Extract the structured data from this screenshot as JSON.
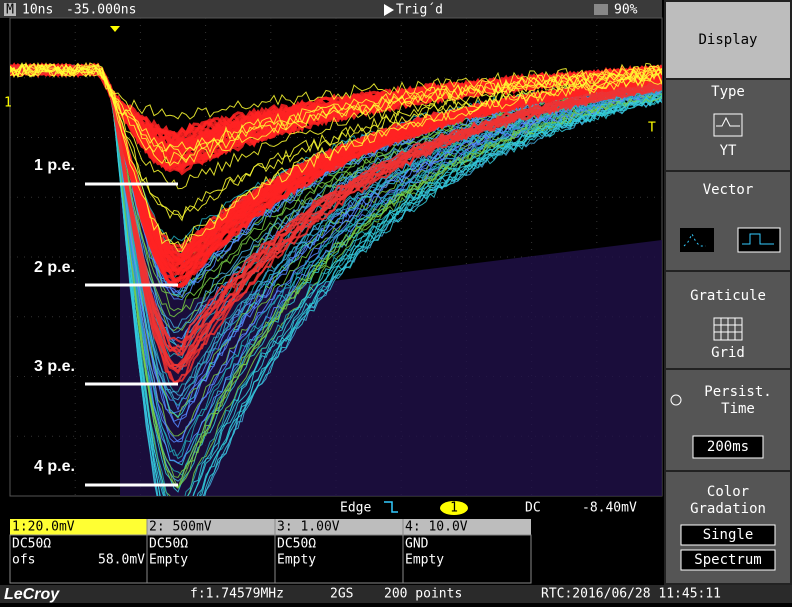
{
  "status_bar": {
    "mode": "M",
    "timebase": "10ns",
    "delay": "-35.000ns",
    "trigger_state": "Trig´d",
    "battery": "90%"
  },
  "annotations": [
    "1 p.e.",
    "2 p.e.",
    "3 p.e.",
    "4 p.e."
  ],
  "markers": {
    "left": "1",
    "right": "T"
  },
  "trigger_bar": {
    "type": "Edge",
    "source": "1",
    "coupling": "DC",
    "level": "-8.40mV"
  },
  "channels": [
    {
      "scale": "1:20.0mV",
      "coupling": "DC50Ω",
      "offset_label": "ofs",
      "offset": "58.0mV"
    },
    {
      "scale": "2: 500mV",
      "coupling": "DC50Ω",
      "offset": "Empty"
    },
    {
      "scale": "3: 1.00V",
      "coupling": "DC50Ω",
      "offset": "Empty"
    },
    {
      "scale": "4: 10.0V",
      "coupling": "GND",
      "offset": "Empty"
    }
  ],
  "footer": {
    "brand": "LeCroy",
    "frequency": "f:1.74579MHz",
    "sample_rate": "2GS",
    "points": "200 points",
    "clock": "RTC:2016/06/28 11:45:11"
  },
  "menu": {
    "title": "Display",
    "type_label": "Type",
    "type_value": "YT",
    "vector_label": "Vector",
    "graticule_label": "Graticule",
    "graticule_value": "Grid",
    "persist_label": "Persist. Time",
    "persist_value": "200ms",
    "gradation_label": "Color Gradation",
    "gradation_options": [
      "Single",
      "Spectrum"
    ]
  }
}
